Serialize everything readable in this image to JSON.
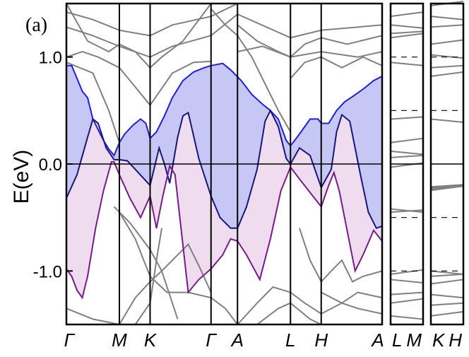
{
  "chart_data": {
    "type": "line",
    "panel_label": "(a)",
    "ylabel": "E(eV)",
    "ylim": [
      -1.5,
      1.5
    ],
    "yticks": [
      {
        "value": 1.0,
        "label": "1.0"
      },
      {
        "value": 0.0,
        "label": "0.0"
      },
      {
        "value": -1.0,
        "label": "-1.0"
      }
    ],
    "grid": false,
    "path": [
      {
        "label": "Γ",
        "x": 0.0
      },
      {
        "label": "M",
        "x": 1.0
      },
      {
        "label": "K",
        "x": 1.58
      },
      {
        "label": "Γ",
        "x": 2.73
      },
      {
        "label": "A",
        "x": 3.23
      },
      {
        "label": "L",
        "x": 4.23
      },
      {
        "label": "H",
        "x": 4.81
      },
      {
        "label": "A",
        "x": 5.96
      }
    ],
    "side_panels": [
      {
        "labels": [
          "L",
          "M"
        ]
      },
      {
        "labels": [
          "K",
          "H"
        ]
      }
    ],
    "highlighted_bands": {
      "upper": {
        "color": "#1f1fe0",
        "points": [
          [
            0,
            0.92
          ],
          [
            0.1,
            0.92
          ],
          [
            0.2,
            0.8
          ],
          [
            0.3,
            0.68
          ],
          [
            0.4,
            0.62
          ],
          [
            0.5,
            0.42
          ],
          [
            0.6,
            0.32
          ],
          [
            0.7,
            0.22
          ],
          [
            0.8,
            0.14
          ],
          [
            0.9,
            0.08
          ],
          [
            1.0,
            0.2
          ],
          [
            1.1,
            0.28
          ],
          [
            1.25,
            0.36
          ],
          [
            1.4,
            0.42
          ],
          [
            1.5,
            0.38
          ],
          [
            1.58,
            0.24
          ],
          [
            1.7,
            0.3
          ],
          [
            1.85,
            0.45
          ],
          [
            2.0,
            0.62
          ],
          [
            2.2,
            0.78
          ],
          [
            2.4,
            0.86
          ],
          [
            2.6,
            0.9
          ],
          [
            2.73,
            0.92
          ],
          [
            2.95,
            0.94
          ],
          [
            3.1,
            0.88
          ],
          [
            3.3,
            0.78
          ],
          [
            3.5,
            0.65
          ],
          [
            3.7,
            0.56
          ],
          [
            3.85,
            0.5
          ],
          [
            4.0,
            0.42
          ],
          [
            4.15,
            0.22
          ],
          [
            4.23,
            0.17
          ],
          [
            4.4,
            0.28
          ],
          [
            4.6,
            0.42
          ],
          [
            4.75,
            0.42
          ],
          [
            4.81,
            0.38
          ],
          [
            4.95,
            0.38
          ],
          [
            5.1,
            0.5
          ],
          [
            5.25,
            0.58
          ],
          [
            5.4,
            0.63
          ],
          [
            5.6,
            0.7
          ],
          [
            5.8,
            0.78
          ],
          [
            5.96,
            0.82
          ]
        ]
      },
      "middle": {
        "color": "#17177a",
        "points": [
          [
            0,
            -0.32
          ],
          [
            0.2,
            -0.1
          ],
          [
            0.4,
            0.25
          ],
          [
            0.5,
            0.42
          ],
          [
            0.6,
            0.38
          ],
          [
            0.75,
            0.15
          ],
          [
            0.9,
            0.04
          ],
          [
            1.0,
            0.04
          ],
          [
            1.15,
            0.03
          ],
          [
            1.3,
            -0.05
          ],
          [
            1.58,
            -0.2
          ],
          [
            1.75,
            0.15
          ],
          [
            1.85,
            0.0
          ],
          [
            1.95,
            -0.18
          ],
          [
            2.1,
            0.25
          ],
          [
            2.2,
            0.45
          ],
          [
            2.3,
            0.48
          ],
          [
            2.5,
            0.05
          ],
          [
            2.73,
            -0.3
          ],
          [
            2.9,
            -0.5
          ],
          [
            3.1,
            -0.6
          ],
          [
            3.23,
            -0.6
          ],
          [
            3.4,
            -0.4
          ],
          [
            3.6,
            -0.05
          ],
          [
            3.75,
            0.4
          ],
          [
            3.85,
            0.5
          ],
          [
            4.0,
            0.35
          ],
          [
            4.15,
            0.05
          ],
          [
            4.23,
            0.0
          ],
          [
            4.4,
            0.15
          ],
          [
            4.6,
            0.08
          ],
          [
            4.81,
            -0.22
          ],
          [
            5.0,
            -0.05
          ],
          [
            5.1,
            0.3
          ],
          [
            5.2,
            0.46
          ],
          [
            5.35,
            0.4
          ],
          [
            5.55,
            -0.1
          ],
          [
            5.7,
            -0.45
          ],
          [
            5.85,
            -0.6
          ],
          [
            5.96,
            -0.58
          ]
        ]
      },
      "lower": {
        "color": "#7a1a8a",
        "points": [
          [
            0,
            -0.98
          ],
          [
            0.1,
            -1.05
          ],
          [
            0.2,
            -1.18
          ],
          [
            0.3,
            -1.25
          ],
          [
            0.4,
            -1.05
          ],
          [
            0.55,
            -0.6
          ],
          [
            0.7,
            -0.25
          ],
          [
            0.85,
            0.02
          ],
          [
            0.9,
            0.02
          ],
          [
            1.0,
            -0.1
          ],
          [
            1.2,
            -0.32
          ],
          [
            1.4,
            -0.5
          ],
          [
            1.58,
            -0.3
          ],
          [
            1.7,
            -0.6
          ],
          [
            1.82,
            -0.3
          ],
          [
            1.95,
            -0.02
          ],
          [
            2.05,
            -0.1
          ],
          [
            2.3,
            -1.2
          ],
          [
            2.5,
            -1.08
          ],
          [
            2.73,
            -0.98
          ],
          [
            2.95,
            -0.85
          ],
          [
            3.1,
            -0.7
          ],
          [
            3.23,
            -0.72
          ],
          [
            3.4,
            -0.85
          ],
          [
            3.65,
            -1.08
          ],
          [
            3.85,
            -0.7
          ],
          [
            4.05,
            -0.25
          ],
          [
            4.23,
            -0.03
          ],
          [
            4.4,
            -0.14
          ],
          [
            4.81,
            -0.4
          ],
          [
            4.95,
            -0.2
          ],
          [
            5.05,
            -0.08
          ],
          [
            5.15,
            -0.25
          ],
          [
            5.45,
            -1.0
          ],
          [
            5.6,
            -0.85
          ],
          [
            5.8,
            -0.62
          ],
          [
            5.96,
            -0.72
          ]
        ]
      }
    },
    "fill_colors": {
      "upper_region": "#c7c7f5",
      "lower_region": "#efdcef"
    },
    "background_bands_color": "#808080",
    "background_bands": [
      [
        [
          0,
          1.42
        ],
        [
          0.5,
          1.35
        ],
        [
          1.0,
          1.25
        ],
        [
          1.58,
          1.2
        ],
        [
          2.0,
          1.3
        ],
        [
          2.73,
          1.38
        ],
        [
          3.23,
          1.5
        ]
      ],
      [
        [
          0,
          1.28
        ],
        [
          0.5,
          1.2
        ],
        [
          1.0,
          1.1
        ],
        [
          1.58,
          1.0
        ],
        [
          2.0,
          1.1
        ],
        [
          2.73,
          1.2
        ],
        [
          3.23,
          1.4
        ],
        [
          4.23,
          1.18
        ],
        [
          4.81,
          1.25
        ],
        [
          5.96,
          1.3
        ]
      ],
      [
        [
          0,
          1.0
        ],
        [
          0.3,
          1.05
        ],
        [
          0.6,
          1.0
        ],
        [
          1.0,
          0.9
        ],
        [
          1.3,
          0.72
        ],
        [
          1.58,
          0.55
        ],
        [
          2.0,
          0.85
        ],
        [
          2.4,
          0.95
        ],
        [
          2.73,
          0.96
        ]
      ],
      [
        [
          0,
          0.95
        ],
        [
          0.5,
          0.85
        ],
        [
          0.8,
          0.5
        ],
        [
          1.0,
          0.2
        ]
      ],
      [
        [
          0,
          1.5
        ],
        [
          0.4,
          1.15
        ],
        [
          0.8,
          1.05
        ],
        [
          1.0,
          1.12
        ],
        [
          1.3,
          1.05
        ],
        [
          1.58,
          0.9
        ],
        [
          1.8,
          1.0
        ],
        [
          2.2,
          1.15
        ],
        [
          2.73,
          1.5
        ]
      ],
      [
        [
          2.73,
          1.45
        ],
        [
          3.0,
          1.3
        ],
        [
          3.23,
          1.2
        ],
        [
          3.5,
          1.0
        ],
        [
          3.8,
          0.7
        ],
        [
          4.0,
          0.5
        ],
        [
          4.23,
          0.3
        ]
      ],
      [
        [
          3.23,
          1.3
        ],
        [
          3.6,
          1.15
        ],
        [
          4.0,
          1.05
        ],
        [
          4.23,
          1.0
        ],
        [
          4.5,
          1.12
        ],
        [
          4.81,
          1.18
        ],
        [
          5.3,
          1.12
        ],
        [
          5.96,
          1.2
        ]
      ],
      [
        [
          3.23,
          1.05
        ],
        [
          3.7,
          1.1
        ],
        [
          4.23,
          1.0
        ],
        [
          4.81,
          1.05
        ],
        [
          5.5,
          1.0
        ],
        [
          5.96,
          1.05
        ]
      ],
      [
        [
          4.23,
          0.8
        ],
        [
          4.5,
          0.95
        ],
        [
          4.81,
          1.0
        ],
        [
          5.2,
          0.9
        ],
        [
          5.6,
          1.0
        ],
        [
          5.96,
          0.92
        ]
      ],
      [
        [
          0,
          -1.35
        ],
        [
          0.5,
          -1.45
        ],
        [
          1.0,
          -1.5
        ]
      ],
      [
        [
          0.9,
          -0.4
        ],
        [
          1.2,
          -0.55
        ],
        [
          1.58,
          -0.8
        ],
        [
          1.8,
          -1.0
        ],
        [
          2.0,
          -0.9
        ],
        [
          2.3,
          -0.75
        ],
        [
          2.5,
          -0.95
        ],
        [
          2.73,
          -1.2
        ]
      ],
      [
        [
          1.0,
          -0.45
        ],
        [
          1.3,
          -0.7
        ],
        [
          1.58,
          -1.05
        ],
        [
          1.9,
          -1.2
        ],
        [
          2.3,
          -1.2
        ],
        [
          2.73,
          -1.25
        ],
        [
          3.0,
          -1.35
        ],
        [
          3.23,
          -1.5
        ]
      ],
      [
        [
          1.0,
          -1.5
        ],
        [
          1.3,
          -1.25
        ],
        [
          1.58,
          -1.1
        ],
        [
          1.8,
          -1.0
        ],
        [
          1.9,
          -1.15
        ],
        [
          2.1,
          -1.45
        ]
      ],
      [
        [
          1.3,
          -1.5
        ],
        [
          1.58,
          -1.3
        ],
        [
          1.7,
          -0.9
        ],
        [
          1.8,
          -0.6
        ]
      ],
      [
        [
          3.23,
          -1.5
        ],
        [
          3.6,
          -1.3
        ],
        [
          3.9,
          -1.15
        ],
        [
          4.23,
          -1.2
        ],
        [
          4.5,
          -1.3
        ],
        [
          4.81,
          -1.4
        ],
        [
          5.2,
          -1.3
        ],
        [
          5.5,
          -1.2
        ],
        [
          5.96,
          -1.25
        ]
      ],
      [
        [
          3.6,
          -1.5
        ],
        [
          4.0,
          -1.35
        ],
        [
          4.23,
          -1.3
        ],
        [
          4.6,
          -1.45
        ],
        [
          4.81,
          -1.5
        ]
      ],
      [
        [
          4.4,
          -0.6
        ],
        [
          4.6,
          -0.9
        ],
        [
          4.81,
          -1.1
        ],
        [
          5.0,
          -1.0
        ],
        [
          5.2,
          -0.9
        ],
        [
          5.4,
          -1.1
        ],
        [
          5.6,
          -1.05
        ],
        [
          5.96,
          -1.0
        ]
      ],
      [
        [
          4.81,
          -1.2
        ],
        [
          5.2,
          -1.3
        ],
        [
          5.5,
          -1.35
        ],
        [
          5.96,
          -1.4
        ]
      ]
    ]
  }
}
